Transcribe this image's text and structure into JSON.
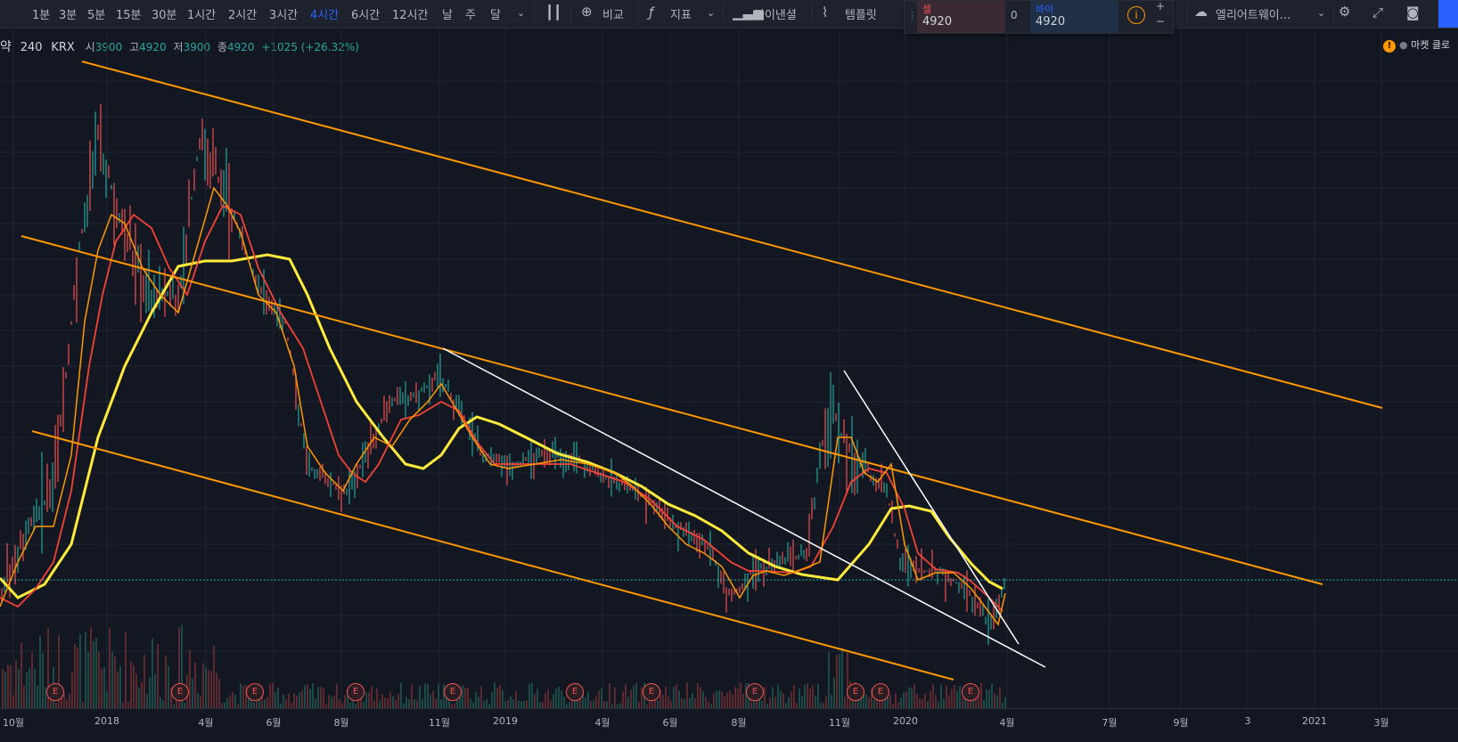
{
  "toolbar": {
    "intervals": [
      "1분",
      "3분",
      "5분",
      "15분",
      "30분",
      "1시간",
      "2시간",
      "3시간",
      "4시간",
      "6시간",
      "12시간",
      "날",
      "주",
      "달"
    ],
    "active_interval": "4시간",
    "compare": "비교",
    "indicators": "지표",
    "financials": "파이낸셜",
    "templates": "템플릿",
    "alert_workspace": "엘리어트웨이..."
  },
  "trade": {
    "sell_label": "셀",
    "sell_price": "4920",
    "spread": "0",
    "buy_label": "바이",
    "buy_price": "4920"
  },
  "legend": {
    "name": "약",
    "interval": "240",
    "exchange": "KRX",
    "open_label": "시",
    "open": "3900",
    "high_label": "고",
    "high": "4920",
    "low_label": "저",
    "low": "3900",
    "close_label": "종",
    "close": "4920",
    "change": "+1025 (+26.32%)"
  },
  "market_status": "마켓 클로",
  "x_axis_labels": [
    "10월",
    "2018",
    "4월",
    "6월",
    "8월",
    "11월",
    "2019",
    "4월",
    "6월",
    "8월",
    "11월",
    "2020",
    "4월",
    "7월",
    "9월",
    "3",
    "2021",
    "3월"
  ],
  "earnings_badge": "E",
  "earnings_count": 11,
  "colors": {
    "background": "#131722",
    "channel": "#ff9800",
    "trendline": "#ffffff",
    "ma_long": "#ffeb3b",
    "ma_mid": "#f44336",
    "ma_short": "#ff9800",
    "up": "#26a69a",
    "down": "#ef5350"
  }
}
